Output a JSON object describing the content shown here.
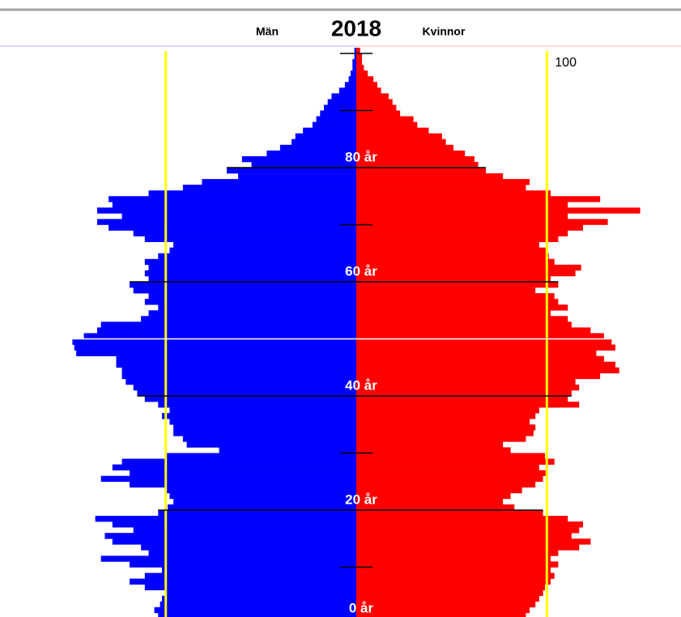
{
  "chart_data": {
    "type": "population_pyramid",
    "title": "2018",
    "categories": [
      "0 år",
      null,
      null,
      null,
      null,
      null,
      null,
      null,
      null,
      null,
      null,
      null,
      null,
      null,
      null,
      null,
      null,
      null,
      null,
      null,
      "20 år",
      null,
      null,
      null,
      null,
      null,
      null,
      null,
      null,
      null,
      null,
      null,
      null,
      null,
      null,
      null,
      null,
      null,
      null,
      null,
      "40 år",
      null,
      null,
      null,
      null,
      null,
      null,
      null,
      null,
      null,
      null,
      null,
      null,
      null,
      null,
      null,
      null,
      null,
      null,
      null,
      "60 år",
      null,
      null,
      null,
      null,
      null,
      null,
      null,
      null,
      null,
      null,
      null,
      null,
      null,
      null,
      null,
      null,
      null,
      null,
      null,
      "80 år",
      null,
      null,
      null,
      null,
      null,
      null,
      null,
      null,
      null,
      null,
      null,
      null,
      null,
      null,
      null,
      null,
      null,
      null,
      null,
      null
    ],
    "series": [
      {
        "name": "Män",
        "color": "#0000ff",
        "values": [
          102,
          104,
          106,
          103,
          102,
          100,
          111,
          119,
          111,
          102,
          119,
          134,
          109,
          113,
          128,
          132,
          117,
          128,
          137,
          104,
          99,
          96,
          98,
          100,
          119,
          134,
          119,
          128,
          123,
          100,
          72,
          89,
          91,
          96,
          96,
          98,
          102,
          98,
          104,
          111,
          115,
          117,
          121,
          123,
          123,
          126,
          126,
          147,
          148,
          149,
          143,
          136,
          134,
          113,
          109,
          104,
          111,
          109,
          117,
          119,
          109,
          111,
          109,
          111,
          104,
          98,
          96,
          111,
          117,
          130,
          136,
          123,
          136,
          128,
          130,
          109,
          91,
          81,
          62,
          68,
          55,
          60,
          47,
          40,
          34,
          32,
          28,
          23,
          21,
          19,
          17,
          15,
          13,
          9,
          6,
          4,
          3,
          2,
          2,
          1,
          1
        ]
      },
      {
        "name": "Kvinnor",
        "color": "#ff0000",
        "values": [
          87,
          89,
          91,
          94,
          96,
          98,
          99,
          102,
          104,
          102,
          106,
          102,
          106,
          117,
          123,
          113,
          117,
          119,
          111,
          98,
          83,
          77,
          81,
          87,
          94,
          98,
          100,
          96,
          104,
          99,
          81,
          77,
          89,
          93,
          94,
          91,
          94,
          96,
          117,
          111,
          113,
          117,
          115,
          128,
          138,
          136,
          130,
          126,
          136,
          134,
          130,
          123,
          113,
          111,
          102,
          111,
          106,
          104,
          94,
          106,
          102,
          115,
          118,
          104,
          101,
          100,
          96,
          106,
          111,
          119,
          132,
          111,
          149,
          111,
          128,
          102,
          89,
          91,
          77,
          68,
          64,
          62,
          57,
          51,
          47,
          45,
          38,
          32,
          30,
          23,
          21,
          19,
          17,
          13,
          11,
          9,
          6,
          4,
          3,
          3,
          2
        ]
      }
    ],
    "xlim": [
      0,
      187
    ],
    "xticks": [
      {
        "value": 100,
        "label": "100"
      }
    ],
    "reference_color": "#ffff00"
  }
}
